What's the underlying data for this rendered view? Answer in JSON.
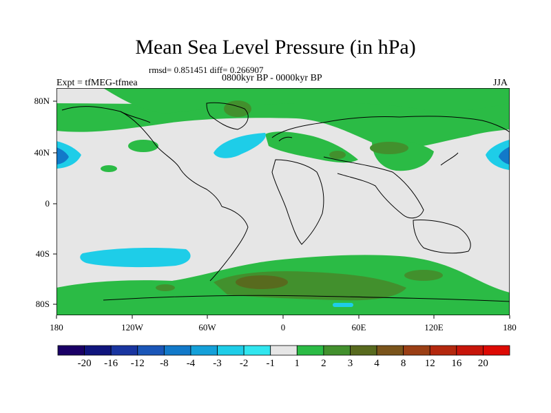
{
  "title": "Mean Sea Level Pressure (in hPa)",
  "stats": "rmsd= 0.851451 diff= 0.266907",
  "period": "0800kyr BP - 0000kyr BP",
  "experiment": "Expt = tfMEG-tfmea",
  "season": "JJA",
  "map": {
    "lat_labels": [
      "80N",
      "40N",
      "0",
      "40S",
      "80S"
    ],
    "lon_labels": [
      "180",
      "120W",
      "60W",
      "0",
      "60E",
      "120E",
      "180"
    ]
  },
  "colorbar": {
    "labels": [
      "-20",
      "-16",
      "-12",
      "-8",
      "-4",
      "-3",
      "-2",
      "-1",
      "1",
      "2",
      "3",
      "4",
      "8",
      "12",
      "16",
      "20"
    ],
    "colors": [
      "#1a0066",
      "#10157d",
      "#1935a0",
      "#1a56b8",
      "#1279c9",
      "#14a0d9",
      "#1ecde8",
      "#31e6ef",
      "#e6e6e6",
      "#2bbb45",
      "#42902d",
      "#586a1e",
      "#7a541b",
      "#9b3f15",
      "#b4280e",
      "#c7150a",
      "#dd0a04"
    ]
  },
  "colors": {
    "ocean": "#e6e6e6",
    "coast": "#000000"
  }
}
